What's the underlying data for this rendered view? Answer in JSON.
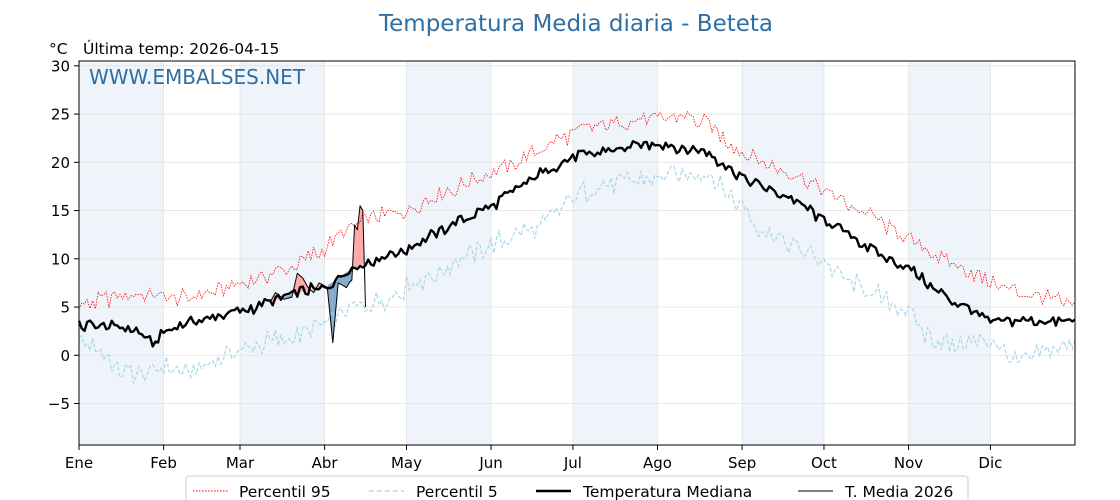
{
  "header": {
    "title": "Temperatura Media diaria - Beteta",
    "unit": "°C",
    "last_temp_label": "Última temp: 2026-04-15",
    "watermark": "WWW.EMBALSES.NET"
  },
  "colors": {
    "title": "#2f6fa3",
    "p95": "#ff0000",
    "p5": "#a8d8e8",
    "median": "#000000",
    "current": "#000000",
    "above_fill": "#ff9999",
    "below_fill": "#6f9bc4",
    "month_band": "#eef4fa"
  },
  "chart_data": {
    "type": "line",
    "title": "Temperatura Media diaria - Beteta",
    "ylabel": "°C",
    "ylim": [
      -9.3,
      30.5
    ],
    "yticks": [
      -5,
      0,
      5,
      10,
      15,
      20,
      25,
      30
    ],
    "ytick_labels": [
      "−5",
      "0",
      "5",
      "10",
      "15",
      "20",
      "25",
      "30"
    ],
    "xlim": [
      0,
      365
    ],
    "months": [
      "Ene",
      "Feb",
      "Mar",
      "Abr",
      "May",
      "Jun",
      "Jul",
      "Ago",
      "Sep",
      "Oct",
      "Nov",
      "Dic"
    ],
    "month_starts": [
      0,
      31,
      59,
      90,
      120,
      151,
      181,
      212,
      243,
      273,
      304,
      334
    ],
    "grid": true,
    "legend_position": "bottom",
    "series": [
      {
        "name": "Percentil 95",
        "key": "p95",
        "style": "dotted",
        "x": [
          0,
          10,
          20,
          31,
          40,
          50,
          59,
          70,
          80,
          90,
          100,
          110,
          120,
          130,
          140,
          151,
          160,
          170,
          181,
          190,
          200,
          212,
          220,
          230,
          243,
          250,
          260,
          273,
          280,
          290,
          304,
          315,
          325,
          334,
          345,
          355,
          365
        ],
        "y": [
          5.0,
          5.8,
          6.3,
          6.2,
          5.8,
          6.8,
          7.5,
          8.2,
          9.5,
          11.0,
          13.5,
          14.5,
          15.0,
          16.5,
          17.5,
          19.0,
          20.0,
          21.5,
          23.0,
          23.8,
          24.2,
          24.5,
          24.8,
          24.0,
          21.0,
          20.0,
          19.0,
          17.0,
          16.0,
          14.5,
          12.0,
          10.0,
          9.0,
          7.5,
          6.5,
          6.0,
          5.0
        ]
      },
      {
        "name": "Percentil 5",
        "key": "p5",
        "style": "dashed",
        "x": [
          0,
          8,
          15,
          25,
          31,
          40,
          50,
          59,
          70,
          80,
          90,
          100,
          110,
          120,
          130,
          140,
          151,
          160,
          170,
          181,
          190,
          200,
          212,
          220,
          230,
          243,
          250,
          260,
          273,
          280,
          290,
          304,
          310,
          320,
          334,
          345,
          355,
          365
        ],
        "y": [
          1.5,
          0.5,
          -1.5,
          -2.0,
          -1.0,
          -2.0,
          -0.5,
          0.5,
          1.5,
          2.0,
          3.5,
          5.0,
          5.5,
          7.0,
          8.5,
          10.0,
          11.5,
          12.5,
          13.5,
          16.5,
          17.5,
          18.0,
          18.5,
          18.5,
          19.0,
          15.5,
          13.0,
          11.5,
          10.0,
          8.0,
          6.5,
          4.5,
          2.0,
          1.0,
          1.5,
          -1.0,
          0.5,
          1.5
        ]
      },
      {
        "name": "Temperatura Mediana",
        "key": "median",
        "style": "solid-bold",
        "x": [
          0,
          10,
          20,
          28,
          31,
          40,
          50,
          59,
          70,
          80,
          90,
          100,
          110,
          120,
          130,
          140,
          151,
          160,
          170,
          181,
          190,
          200,
          212,
          220,
          230,
          243,
          250,
          260,
          273,
          280,
          290,
          304,
          315,
          325,
          334,
          345,
          355,
          365
        ],
        "y": [
          3.0,
          3.0,
          2.8,
          1.0,
          2.5,
          3.5,
          4.0,
          4.5,
          5.5,
          6.5,
          7.0,
          9.0,
          10.0,
          11.0,
          12.5,
          14.0,
          15.5,
          17.0,
          19.0,
          20.5,
          21.0,
          21.5,
          22.0,
          21.5,
          21.0,
          18.5,
          17.5,
          16.5,
          14.0,
          13.0,
          11.0,
          9.0,
          6.5,
          5.0,
          3.5,
          3.5,
          3.5,
          3.5
        ]
      },
      {
        "name": "T. Media 2026",
        "key": "current",
        "style": "solid-thin",
        "x": [
          70,
          72,
          75,
          78,
          80,
          82,
          84,
          86,
          88,
          90,
          91,
          93,
          95,
          97,
          98,
          99,
          100,
          101,
          102,
          103,
          104,
          105
        ],
        "y": [
          5.5,
          6.5,
          5.8,
          6.0,
          8.5,
          8.0,
          7.0,
          6.5,
          7.5,
          7.2,
          7.0,
          1.3,
          7.5,
          7.2,
          7.0,
          7.5,
          7.8,
          13.5,
          13.0,
          15.5,
          15.0,
          5.0
        ]
      }
    ]
  }
}
